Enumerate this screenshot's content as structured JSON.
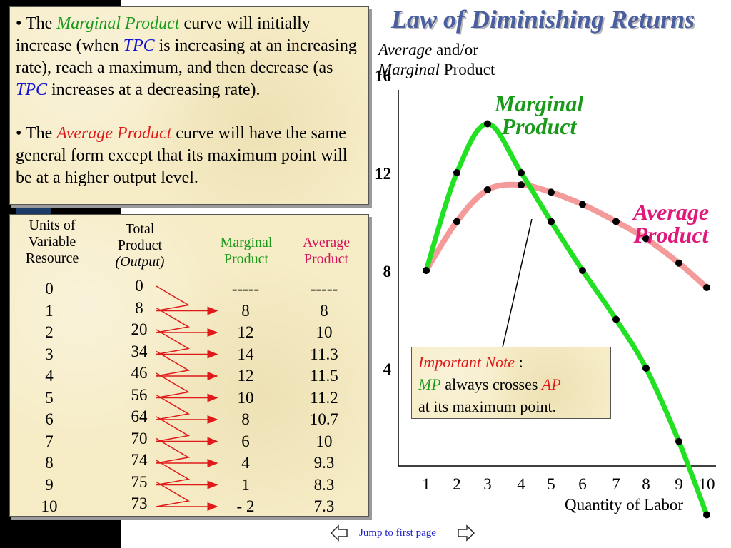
{
  "bullets": {
    "b1": {
      "parts": [
        "• The ",
        "Marginal Product",
        " curve will initially increase (when ",
        "TPC",
        " is increasing at an increasing rate), reach a maximum, and then decrease (as ",
        "TPC",
        " increases at a decreasing rate)."
      ]
    },
    "b2": {
      "parts": [
        "• The ",
        "Average Product",
        " curve will have the same general form except that its maximum point will be at a higher output level."
      ]
    }
  },
  "table": {
    "headers": {
      "units": "Units of Variable Resource",
      "total_line1": "Total",
      "total_line2": "Product",
      "total_line3": "(Output)",
      "marginal": "Marginal Product",
      "average": "Average Product"
    },
    "rows": [
      {
        "units": "0",
        "total": "0",
        "marginal": "-----",
        "average": "-----"
      },
      {
        "units": "1",
        "total": "8",
        "marginal": "8",
        "average": "8"
      },
      {
        "units": "2",
        "total": "20",
        "marginal": "12",
        "average": "10"
      },
      {
        "units": "3",
        "total": "34",
        "marginal": "14",
        "average": "11.3"
      },
      {
        "units": "4",
        "total": "46",
        "marginal": "12",
        "average": "11.5"
      },
      {
        "units": "5",
        "total": "56",
        "marginal": "10",
        "average": "11.2"
      },
      {
        "units": "6",
        "total": "64",
        "marginal": "8",
        "average": "10.7"
      },
      {
        "units": "7",
        "total": "70",
        "marginal": "6",
        "average": "10"
      },
      {
        "units": "8",
        "total": "74",
        "marginal": "4",
        "average": "9.3"
      },
      {
        "units": "9",
        "total": "75",
        "marginal": "1",
        "average": "8.3"
      },
      {
        "units": "10",
        "total": "73",
        "marginal": "- 2",
        "average": "7.3"
      }
    ]
  },
  "chart": {
    "title": "Law of Diminishing Returns",
    "ylabel_italic": "Average",
    "ylabel_rest1": " and/or",
    "ylabel_italic2": "Marginal",
    "ylabel_rest2": " Product",
    "xlabel": "Quantity of Labor",
    "mp_label_line1": "Marginal",
    "mp_label_line2": "Product",
    "ap_label_line1": "Average",
    "ap_label_line2": "Product"
  },
  "chart_data": {
    "type": "line",
    "x": [
      1,
      2,
      3,
      4,
      5,
      6,
      7,
      8,
      9,
      10
    ],
    "xticks": [
      "1",
      "2",
      "3",
      "4",
      "5",
      "6",
      "7",
      "8",
      "9",
      "10"
    ],
    "yticks": [
      "4",
      "8",
      "12",
      "16"
    ],
    "ylim": [
      0,
      16
    ],
    "series": [
      {
        "name": "Marginal Product",
        "color": "#22e022",
        "values": [
          8,
          12,
          14,
          12,
          10,
          8,
          6,
          4,
          1,
          -2
        ]
      },
      {
        "name": "Average Product",
        "color": "#f49a9a",
        "values": [
          8,
          10,
          11.3,
          11.5,
          11.2,
          10.7,
          10,
          9.3,
          8.3,
          7.3
        ]
      }
    ]
  },
  "note": {
    "label": "Important Note",
    "colon": " :",
    "mp": "MP",
    "mid": " always crosses ",
    "ap": "AP",
    "tail": "at its maximum point."
  },
  "footer": {
    "link": "Jump to first page"
  }
}
